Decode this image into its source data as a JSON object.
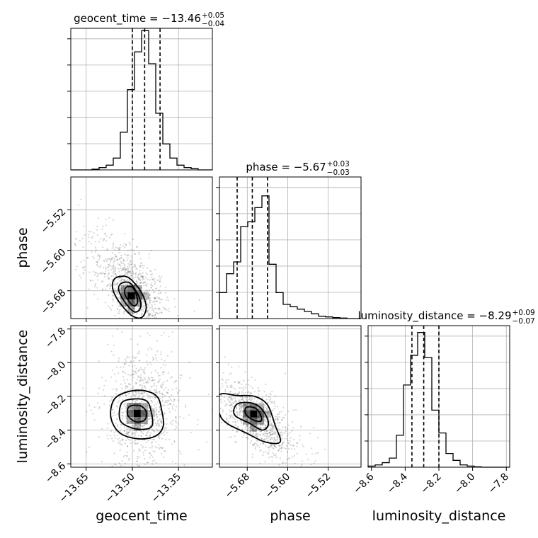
{
  "chart_data": {
    "type": "corner",
    "parameters": [
      {
        "name": "geocent_time",
        "title": "geocent_time = −13.46",
        "title_sup": "+0.05",
        "title_sub": "−0.04",
        "median": -13.46,
        "q_low": -13.5,
        "q_high": -13.41,
        "range": [
          -13.7,
          -13.24
        ],
        "ticks": [
          -13.65,
          -13.5,
          -13.35
        ],
        "tick_labels": [
          "−13.65",
          "−13.50",
          "−13.35"
        ],
        "hist": {
          "edges": [
            -13.7,
            -13.677,
            -13.654,
            -13.631,
            -13.608,
            -13.585,
            -13.562,
            -13.539,
            -13.516,
            -13.493,
            -13.47,
            -13.447,
            -13.424,
            -13.401,
            -13.378,
            -13.355,
            -13.332,
            -13.309,
            -13.286,
            -13.263,
            -13.24
          ],
          "counts": [
            0,
            0,
            0,
            0.3,
            1,
            2,
            5,
            16,
            34,
            50,
            59,
            45,
            24,
            11,
            5,
            2,
            1,
            0.5,
            0,
            0
          ],
          "max": 60
        }
      },
      {
        "name": "phase",
        "title": "phase = −5.67",
        "title_sup": "+0.03",
        "title_sub": "−0.03",
        "median": -5.67,
        "q_low": -5.7,
        "q_high": -5.64,
        "range": [
          -5.735,
          -5.455
        ],
        "ticks": [
          -5.68,
          -5.6,
          -5.52
        ],
        "tick_labels": [
          "−5.68",
          "−5.60",
          "−5.52"
        ],
        "hist": {
          "edges": [
            -5.735,
            -5.721,
            -5.707,
            -5.693,
            -5.679,
            -5.665,
            -5.651,
            -5.637,
            -5.623,
            -5.609,
            -5.595,
            -5.581,
            -5.567,
            -5.553,
            -5.539,
            -5.525,
            -5.511,
            -5.497,
            -5.483,
            -5.469,
            -5.455
          ],
          "counts": [
            11,
            19,
            24,
            39,
            41,
            47,
            52,
            23,
            11,
            6,
            5,
            4,
            3,
            2,
            1,
            0.7,
            0.4,
            0.2,
            0,
            0
          ],
          "max": 60
        }
      },
      {
        "name": "luminosity_distance",
        "title": "luminosity_distance = −8.29",
        "title_sup": "+0.09",
        "title_sub": "−0.07",
        "median": -8.29,
        "q_low": -8.36,
        "q_high": -8.2,
        "range": [
          -8.62,
          -7.78
        ],
        "ticks": [
          -8.6,
          -8.4,
          -8.2,
          -8.0,
          -7.8
        ],
        "tick_labels": [
          "−8.6",
          "−8.4",
          "−8.2",
          "−8.0",
          "−7.8"
        ],
        "hist": {
          "edges": [
            -8.62,
            -8.578,
            -8.536,
            -8.494,
            -8.452,
            -8.41,
            -8.368,
            -8.326,
            -8.284,
            -8.242,
            -8.2,
            -8.158,
            -8.116,
            -8.074,
            -8.032,
            -7.99,
            -7.948,
            -7.906,
            -7.864,
            -7.822,
            -7.78
          ],
          "counts": [
            0.5,
            1,
            2,
            4,
            14,
            36,
            49,
            59,
            48,
            25,
            15,
            6,
            3,
            1,
            0.5,
            0.2,
            0,
            0,
            0,
            0
          ],
          "max": 62
        }
      }
    ],
    "pairs": [
      {
        "x": "geocent_time",
        "y": "phase",
        "y_ticks": [
          -5.68,
          -5.6,
          -5.52
        ],
        "y_tick_labels": [
          "−5.68",
          "−5.60",
          "−5.52"
        ],
        "center": [
          -13.495,
          -5.68
        ],
        "spread": [
          0.035,
          0.025
        ],
        "cov": -0.55,
        "tail_dir": [
          -1.0,
          1.0
        ],
        "contours": [
          [
            [
              -13.555,
              -5.655
            ],
            [
              -13.52,
              -5.652
            ],
            [
              -13.49,
              -5.667
            ],
            [
              -13.465,
              -5.69
            ],
            [
              -13.455,
              -5.715
            ],
            [
              -13.47,
              -5.733
            ],
            [
              -13.5,
              -5.73
            ],
            [
              -13.53,
              -5.712
            ],
            [
              -13.555,
              -5.69
            ],
            [
              -13.565,
              -5.67
            ]
          ],
          [
            [
              -13.535,
              -5.665
            ],
            [
              -13.51,
              -5.664
            ],
            [
              -13.49,
              -5.678
            ],
            [
              -13.475,
              -5.698
            ],
            [
              -13.474,
              -5.715
            ],
            [
              -13.492,
              -5.722
            ],
            [
              -13.515,
              -5.71
            ],
            [
              -13.537,
              -5.69
            ],
            [
              -13.545,
              -5.675
            ]
          ],
          [
            [
              -13.52,
              -5.673
            ],
            [
              -13.5,
              -5.673
            ],
            [
              -13.488,
              -5.686
            ],
            [
              -13.483,
              -5.703
            ],
            [
              -13.495,
              -5.71
            ],
            [
              -13.512,
              -5.7
            ],
            [
              -13.525,
              -5.685
            ]
          ]
        ]
      },
      {
        "x": "geocent_time",
        "y": "luminosity_distance",
        "y_ticks": [
          -8.6,
          -8.4,
          -8.2,
          -8.0,
          -7.8
        ],
        "y_tick_labels": [
          "−8.6",
          "−8.4",
          "−8.2",
          "−8.0",
          "−7.8"
        ],
        "center": [
          -13.47,
          -8.29
        ],
        "spread": [
          0.04,
          0.1
        ],
        "cov": 0.0,
        "tail_dir": [
          0.0,
          0.0
        ],
        "contours": [
          [
            [
              -13.56,
              -8.22
            ],
            [
              -13.52,
              -8.175
            ],
            [
              -13.465,
              -8.165
            ],
            [
              -13.42,
              -8.2
            ],
            [
              -13.405,
              -8.28
            ],
            [
              -13.4,
              -8.38
            ],
            [
              -13.43,
              -8.44
            ],
            [
              -13.49,
              -8.45
            ],
            [
              -13.545,
              -8.41
            ],
            [
              -13.57,
              -8.32
            ]
          ],
          [
            [
              -13.535,
              -8.24
            ],
            [
              -13.495,
              -8.215
            ],
            [
              -13.455,
              -8.225
            ],
            [
              -13.44,
              -8.28
            ],
            [
              -13.435,
              -8.37
            ],
            [
              -13.46,
              -8.395
            ],
            [
              -13.505,
              -8.385
            ],
            [
              -13.54,
              -8.34
            ]
          ],
          [
            [
              -13.51,
              -8.26
            ],
            [
              -13.475,
              -8.255
            ],
            [
              -13.455,
              -8.29
            ],
            [
              -13.46,
              -8.34
            ],
            [
              -13.49,
              -8.35
            ],
            [
              -13.515,
              -8.31
            ]
          ]
        ]
      },
      {
        "x": "phase",
        "y": "luminosity_distance",
        "y_ticks": [
          -8.6,
          -8.4,
          -8.2,
          -8.0,
          -7.8
        ],
        "y_tick_labels": [
          "−8.6",
          "−8.4",
          "−8.2",
          "−8.0",
          "−7.8"
        ],
        "center": [
          -5.672,
          -8.31
        ],
        "spread": [
          0.022,
          0.06
        ],
        "cov": -0.6,
        "tail_dir": [
          1.0,
          -1.0
        ],
        "contours": [
          [
            [
              -5.735,
              -8.19
            ],
            [
              -5.7,
              -8.195
            ],
            [
              -5.665,
              -8.2
            ],
            [
              -5.64,
              -8.25
            ],
            [
              -5.625,
              -8.37
            ],
            [
              -5.615,
              -8.47
            ],
            [
              -5.645,
              -8.47
            ],
            [
              -5.68,
              -8.42
            ],
            [
              -5.72,
              -8.36
            ],
            [
              -5.735,
              -8.3
            ]
          ],
          [
            [
              -5.7,
              -8.245
            ],
            [
              -5.67,
              -8.24
            ],
            [
              -5.65,
              -8.28
            ],
            [
              -5.638,
              -8.36
            ],
            [
              -5.65,
              -8.4
            ],
            [
              -5.675,
              -8.36
            ],
            [
              -5.705,
              -8.31
            ]
          ],
          [
            [
              -5.682,
              -8.265
            ],
            [
              -5.665,
              -8.268
            ],
            [
              -5.655,
              -8.3
            ],
            [
              -5.652,
              -8.345
            ],
            [
              -5.668,
              -8.34
            ],
            [
              -5.683,
              -8.305
            ]
          ]
        ]
      }
    ]
  }
}
